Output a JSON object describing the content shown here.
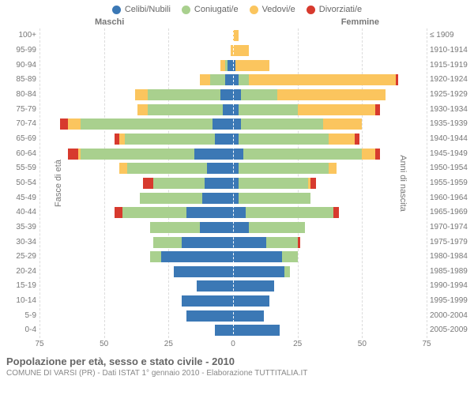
{
  "chart": {
    "type": "population-pyramid",
    "legend": [
      {
        "label": "Celibi/Nubili",
        "color": "#3b78b5"
      },
      {
        "label": "Coniugati/e",
        "color": "#a9d08e"
      },
      {
        "label": "Vedovi/e",
        "color": "#fbc55e"
      },
      {
        "label": "Divorziati/e",
        "color": "#d73a2e"
      }
    ],
    "side_titles": {
      "male": "Maschi",
      "female": "Femmine"
    },
    "y_axis_left_title": "Fasce di età",
    "y_axis_right_title": "Anni di nascita",
    "x_max": 75,
    "x_ticks": [
      75,
      50,
      25,
      0,
      25,
      50,
      75
    ],
    "grid_color": "#dcdcdc",
    "background_color": "#ffffff",
    "label_fontsize": 10,
    "rows": [
      {
        "age": "100+",
        "birth": "≤ 1909",
        "m": [
          0,
          0,
          0,
          0
        ],
        "f": [
          0,
          0,
          2,
          0
        ]
      },
      {
        "age": "95-99",
        "birth": "1910-1914",
        "m": [
          0,
          0,
          1,
          0
        ],
        "f": [
          0,
          0,
          6,
          0
        ]
      },
      {
        "age": "90-94",
        "birth": "1915-1919",
        "m": [
          2,
          1,
          2,
          0
        ],
        "f": [
          1,
          0,
          13,
          0
        ]
      },
      {
        "age": "85-89",
        "birth": "1920-1924",
        "m": [
          3,
          6,
          4,
          0
        ],
        "f": [
          2,
          4,
          57,
          1
        ]
      },
      {
        "age": "80-84",
        "birth": "1925-1929",
        "m": [
          5,
          28,
          5,
          0
        ],
        "f": [
          3,
          14,
          42,
          0
        ]
      },
      {
        "age": "75-79",
        "birth": "1930-1934",
        "m": [
          4,
          29,
          4,
          0
        ],
        "f": [
          2,
          23,
          30,
          2
        ]
      },
      {
        "age": "70-74",
        "birth": "1935-1939",
        "m": [
          8,
          51,
          5,
          3
        ],
        "f": [
          3,
          32,
          15,
          0
        ]
      },
      {
        "age": "65-69",
        "birth": "1940-1944",
        "m": [
          7,
          35,
          2,
          2
        ],
        "f": [
          2,
          35,
          10,
          2
        ]
      },
      {
        "age": "60-64",
        "birth": "1945-1949",
        "m": [
          15,
          44,
          1,
          4
        ],
        "f": [
          4,
          46,
          5,
          2
        ]
      },
      {
        "age": "55-59",
        "birth": "1950-1954",
        "m": [
          10,
          31,
          3,
          0
        ],
        "f": [
          2,
          35,
          3,
          0
        ]
      },
      {
        "age": "50-54",
        "birth": "1955-1959",
        "m": [
          11,
          20,
          0,
          4
        ],
        "f": [
          2,
          27,
          1,
          2
        ]
      },
      {
        "age": "45-49",
        "birth": "1960-1964",
        "m": [
          12,
          24,
          0,
          0
        ],
        "f": [
          2,
          28,
          0,
          0
        ]
      },
      {
        "age": "40-44",
        "birth": "1965-1969",
        "m": [
          18,
          25,
          0,
          3
        ],
        "f": [
          5,
          34,
          0,
          2
        ]
      },
      {
        "age": "35-39",
        "birth": "1970-1974",
        "m": [
          13,
          19,
          0,
          0
        ],
        "f": [
          6,
          22,
          0,
          0
        ]
      },
      {
        "age": "30-34",
        "birth": "1975-1979",
        "m": [
          20,
          11,
          0,
          0
        ],
        "f": [
          13,
          12,
          0,
          1
        ]
      },
      {
        "age": "25-29",
        "birth": "1980-1984",
        "m": [
          28,
          4,
          0,
          0
        ],
        "f": [
          19,
          6,
          0,
          0
        ]
      },
      {
        "age": "20-24",
        "birth": "1985-1989",
        "m": [
          23,
          0,
          0,
          0
        ],
        "f": [
          20,
          2,
          0,
          0
        ]
      },
      {
        "age": "15-19",
        "birth": "1990-1994",
        "m": [
          14,
          0,
          0,
          0
        ],
        "f": [
          16,
          0,
          0,
          0
        ]
      },
      {
        "age": "10-14",
        "birth": "1995-1999",
        "m": [
          20,
          0,
          0,
          0
        ],
        "f": [
          14,
          0,
          0,
          0
        ]
      },
      {
        "age": "5-9",
        "birth": "2000-2004",
        "m": [
          18,
          0,
          0,
          0
        ],
        "f": [
          12,
          0,
          0,
          0
        ]
      },
      {
        "age": "0-4",
        "birth": "2005-2009",
        "m": [
          7,
          0,
          0,
          0
        ],
        "f": [
          18,
          0,
          0,
          0
        ]
      }
    ],
    "footer_title": "Popolazione per età, sesso e stato civile - 2010",
    "footer_sub": "COMUNE DI VARSI (PR) - Dati ISTAT 1° gennaio 2010 - Elaborazione TUTTITALIA.IT"
  }
}
